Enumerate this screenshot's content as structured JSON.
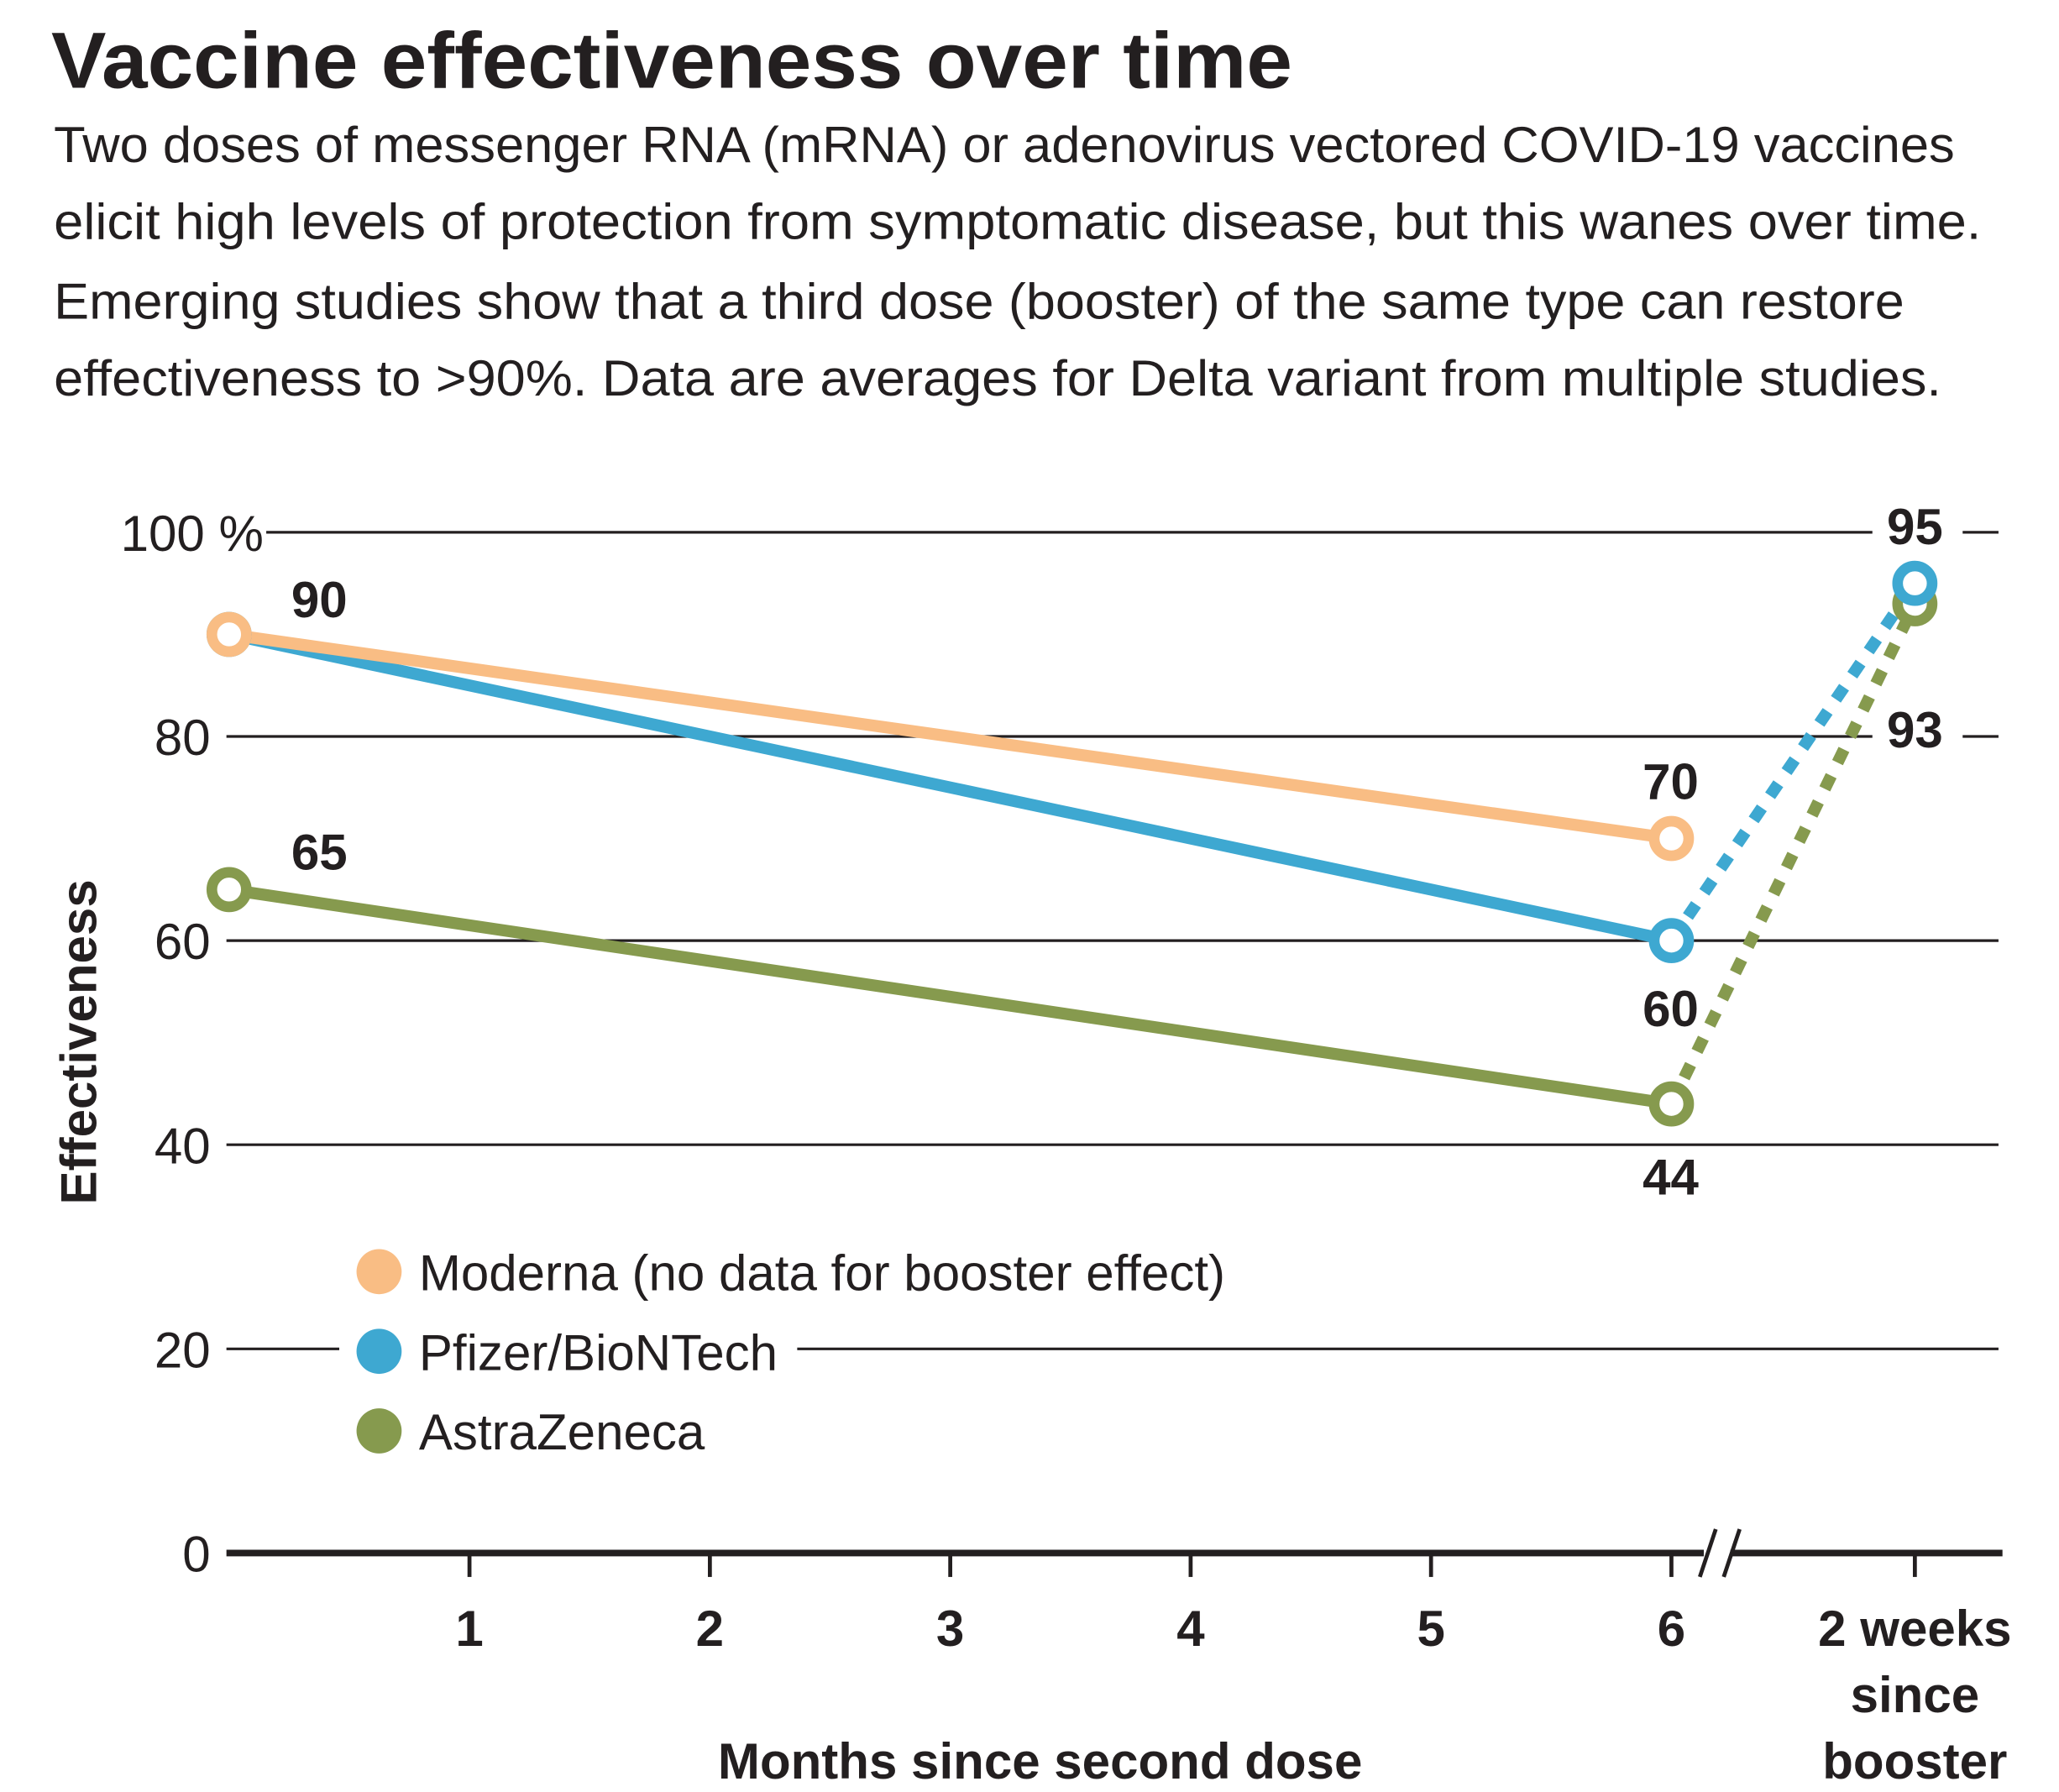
{
  "chart_data": {
    "type": "line",
    "title": "Vaccine effectiveness over time",
    "subtitle": [
      "Two doses of messenger RNA (mRNA) or adenovirus vectored COVID-19 vaccines",
      "elicit high levels of protection from symptomatic disease, but this wanes over time.",
      "Emerging studies show that a third dose (booster) of the same type can restore",
      "effectiveness to >90%. Data are averages for Delta variant from multiple studies."
    ],
    "xlabel": "Months since second dose",
    "ylabel": "Effectiveness",
    "ylim": [
      0,
      100
    ],
    "yticks": [
      "0",
      "20",
      "40",
      "60",
      "80",
      "100 %"
    ],
    "xticks": [
      "1",
      "2",
      "3",
      "4",
      "5",
      "6"
    ],
    "booster_label": [
      "2 weeks",
      "since",
      "booster"
    ],
    "series": [
      {
        "name": "Moderna (no data for booster effect)",
        "color": "#f9bd84",
        "points": [
          {
            "x": 0,
            "y": 90,
            "label": "90"
          },
          {
            "x": 6,
            "y": 70,
            "label": "70"
          }
        ],
        "booster": null
      },
      {
        "name": "Pfizer/BioNTech",
        "color": "#3ea8d1",
        "points": [
          {
            "x": 0,
            "y": 90,
            "label": ""
          },
          {
            "x": 6,
            "y": 60,
            "label": "60"
          }
        ],
        "booster": {
          "y": 95,
          "label": "95"
        }
      },
      {
        "name": "AstraZeneca",
        "color": "#869a4e",
        "points": [
          {
            "x": 0,
            "y": 65,
            "label": "65"
          },
          {
            "x": 6,
            "y": 44,
            "label": "44"
          }
        ],
        "booster": {
          "y": 93,
          "label": "93"
        }
      }
    ]
  }
}
